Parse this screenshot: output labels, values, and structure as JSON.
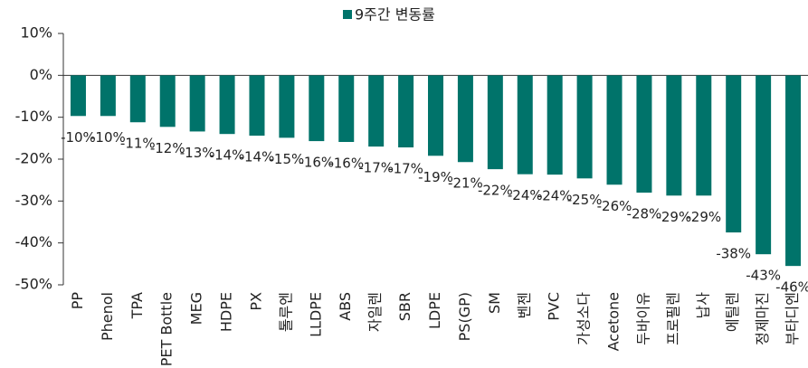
{
  "chart_data": {
    "type": "bar",
    "legend": "9주간 변동률",
    "color": "#00736a",
    "categories": [
      "PP",
      "Phenol",
      "TPA",
      "PET Bottle",
      "MEG",
      "HDPE",
      "PX",
      "톨루엔",
      "LLDPE",
      "ABS",
      "자일렌",
      "SBR",
      "LDPE",
      "PS(GP)",
      "SM",
      "벤젠",
      "PVC",
      "가성소다",
      "Acetone",
      "두바이유",
      "프로필렌",
      "납사",
      "에틸렌",
      "정제마진",
      "부타디엔"
    ],
    "values": [
      -9.7,
      -9.7,
      -11.2,
      -12.3,
      -13.4,
      -14.0,
      -14.4,
      -14.9,
      -15.7,
      -15.9,
      -17.0,
      -17.2,
      -19.2,
      -20.7,
      -22.4,
      -23.6,
      -23.7,
      -24.6,
      -26.1,
      -28.0,
      -28.7,
      -28.7,
      -37.5,
      -42.7,
      -45.5
    ],
    "value_labels": [
      "-10%",
      "-10%",
      "-11%",
      "-12%",
      "-13%",
      "-14%",
      "-14%",
      "-15%",
      "-16%",
      "-16%",
      "-17%",
      "-17%",
      "-19%",
      "-21%",
      "-22%",
      "-24%",
      "-24%",
      "-25%",
      "-26%",
      "-28%",
      "-29%",
      "-29%",
      "-38%",
      "-43%",
      "-46%"
    ],
    "ylim": [
      -50,
      10
    ],
    "yticks": [
      {
        "value": 10,
        "label": "10%"
      },
      {
        "value": 0,
        "label": "0%"
      },
      {
        "value": -10,
        "label": "-10%"
      },
      {
        "value": -20,
        "label": "-20%"
      },
      {
        "value": -30,
        "label": "-30%"
      },
      {
        "value": -40,
        "label": "-40%"
      },
      {
        "value": -50,
        "label": "-50%"
      }
    ],
    "grid": false
  }
}
